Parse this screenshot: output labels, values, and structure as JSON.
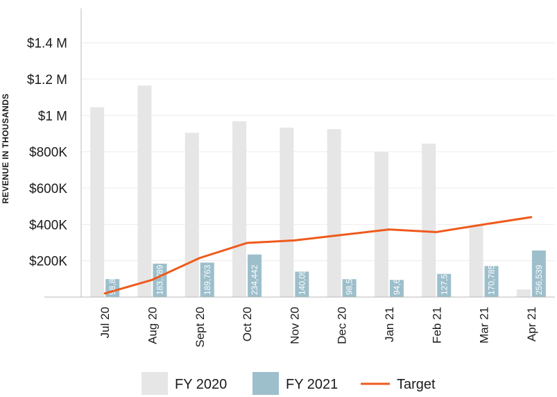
{
  "chart_data": {
    "type": "bar",
    "ylabel": "REVENUE IN THOUSANDS",
    "xlabel": "",
    "categories": [
      "Jul 20",
      "Aug 20",
      "Sept 20",
      "Oct 20",
      "Nov 20",
      "Dec 20",
      "Jan 21",
      "Feb 21",
      "Mar 21",
      "Apr 21"
    ],
    "series": [
      {
        "name": "FY 2020",
        "kind": "bar",
        "color": "#e6e6e6",
        "values": [
          1045000,
          1165000,
          905000,
          968000,
          933000,
          925000,
          800000,
          845000,
          395000,
          42000
        ]
      },
      {
        "name": "FY 2021",
        "kind": "bar",
        "color": "#9dbfcc",
        "values": [
          98833,
          183789,
          189763,
          234442,
          140090,
          98587,
          94657,
          127509,
          170785,
          256539
        ],
        "labels": [
          "98,833",
          "183,789",
          "189,763",
          "234,442",
          "140,090",
          "98,587",
          "94,657",
          "127,509",
          "170,785",
          "256,539"
        ]
      },
      {
        "name": "Target",
        "kind": "line",
        "color": "#ee5a1d",
        "values": [
          20000,
          95000,
          215000,
          298000,
          312000,
          342000,
          372000,
          358000,
          400000,
          440000
        ]
      }
    ],
    "yticks": [
      {
        "value": 200000,
        "label": "$200K"
      },
      {
        "value": 400000,
        "label": "$400K"
      },
      {
        "value": 600000,
        "label": "$600K"
      },
      {
        "value": 800000,
        "label": "$800K"
      },
      {
        "value": 1000000,
        "label": "$1 M"
      },
      {
        "value": 1200000,
        "label": "$1.2 M"
      },
      {
        "value": 1400000,
        "label": "$1.4 M"
      }
    ],
    "ylim": [
      0,
      1590000
    ],
    "grid": true,
    "legend_position": "bottom"
  }
}
